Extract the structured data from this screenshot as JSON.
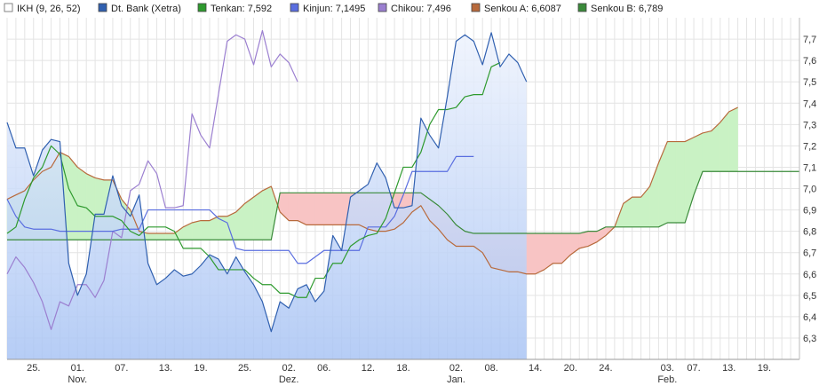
{
  "chart_data": {
    "type": "line",
    "title": "",
    "xlabel": "",
    "ylabel": "",
    "y_range": [
      6.2,
      7.8
    ],
    "y_ticks": [
      "6,3",
      "6,4",
      "6,5",
      "6,6",
      "6,7",
      "6,8",
      "6,9",
      "7,0",
      "7,1",
      "7,2",
      "7,3",
      "7,4",
      "7,5",
      "7,6",
      "7,7"
    ],
    "grid": true,
    "legend_position": "top",
    "n_points": 91,
    "x_ticks": [
      {
        "i": 3,
        "label": "25."
      },
      {
        "i": 8,
        "label": "01.",
        "month": "Nov."
      },
      {
        "i": 13,
        "label": "07."
      },
      {
        "i": 18,
        "label": "13."
      },
      {
        "i": 22,
        "label": "19."
      },
      {
        "i": 27,
        "label": "25."
      },
      {
        "i": 32,
        "label": "02.",
        "month": "Dez."
      },
      {
        "i": 36,
        "label": "06."
      },
      {
        "i": 41,
        "label": "12."
      },
      {
        "i": 45,
        "label": "18."
      },
      {
        "i": 51,
        "label": "02.",
        "month": "Jan."
      },
      {
        "i": 55,
        "label": "08."
      },
      {
        "i": 60,
        "label": "14."
      },
      {
        "i": 64,
        "label": "20."
      },
      {
        "i": 68,
        "label": "24."
      },
      {
        "i": 75,
        "label": "03.",
        "month": "Feb."
      },
      {
        "i": 78,
        "label": "07."
      },
      {
        "i": 82,
        "label": "13."
      },
      {
        "i": 86,
        "label": "19."
      }
    ],
    "legend": [
      {
        "key": "ikh",
        "label": "IKH (9, 26, 52)",
        "color": "#ffffff",
        "border": "#666666"
      },
      {
        "key": "price",
        "label": "Dt. Bank (Xetra)",
        "color": "#3060b0"
      },
      {
        "key": "tenkan",
        "label": "Tenkan: 7,592",
        "color": "#2e9a2e"
      },
      {
        "key": "kinjun",
        "label": "Kinjun: 7,1495",
        "color": "#5a6ee0"
      },
      {
        "key": "chikou",
        "label": "Chikou: 7,496",
        "color": "#9b7fd0"
      },
      {
        "key": "senkou_a",
        "label": "Senkou A: 6,6087",
        "color": "#b86a3c"
      },
      {
        "key": "senkou_b",
        "label": "Senkou B: 6,789",
        "color": "#3a8a3a"
      }
    ],
    "colors": {
      "price_fill_top": "#eef3fd",
      "price_fill_bottom": "#a9c4f4",
      "cloud_bull": "#c9f2c4",
      "cloud_bear": "#f8c4c4"
    },
    "series": [
      {
        "name": "Dt. Bank (Xetra)",
        "key": "price",
        "start": 0,
        "values": [
          7.31,
          7.19,
          7.19,
          7.06,
          7.18,
          7.23,
          7.22,
          6.65,
          6.5,
          6.6,
          6.88,
          6.88,
          7.06,
          6.92,
          6.87,
          6.97,
          6.65,
          6.55,
          6.58,
          6.62,
          6.59,
          6.6,
          6.64,
          6.69,
          6.67,
          6.6,
          6.68,
          6.61,
          6.55,
          6.47,
          6.33,
          6.47,
          6.44,
          6.53,
          6.55,
          6.47,
          6.52,
          6.78,
          6.71,
          6.96,
          6.99,
          7.02,
          7.12,
          7.05,
          6.91,
          6.91,
          6.92,
          7.33,
          7.25,
          7.19,
          7.43,
          7.69,
          7.72,
          7.69,
          7.58,
          7.73,
          7.57,
          7.63,
          7.59,
          7.5
        ]
      },
      {
        "name": "Tenkan",
        "key": "tenkan",
        "start": 0,
        "values": [
          6.79,
          6.82,
          6.95,
          7.05,
          7.1,
          7.2,
          7.16,
          7.0,
          6.92,
          6.91,
          6.87,
          6.87,
          6.87,
          6.85,
          6.8,
          6.78,
          6.82,
          6.82,
          6.82,
          6.8,
          6.72,
          6.72,
          6.72,
          6.68,
          6.62,
          6.62,
          6.62,
          6.62,
          6.58,
          6.55,
          6.55,
          6.51,
          6.51,
          6.49,
          6.49,
          6.58,
          6.58,
          6.65,
          6.65,
          6.73,
          6.76,
          6.78,
          6.79,
          6.86,
          6.98,
          7.1,
          7.1,
          7.17,
          7.3,
          7.37,
          7.37,
          7.38,
          7.43,
          7.44,
          7.44,
          7.57,
          7.59
        ]
      },
      {
        "name": "Kinjun",
        "key": "kinjun",
        "start": 0,
        "values": [
          6.95,
          6.87,
          6.82,
          6.81,
          6.81,
          6.81,
          6.8,
          6.8,
          6.8,
          6.8,
          6.8,
          6.8,
          6.8,
          6.81,
          6.81,
          6.81,
          6.9,
          6.9,
          6.9,
          6.9,
          6.9,
          6.9,
          6.9,
          6.9,
          6.86,
          6.84,
          6.72,
          6.71,
          6.71,
          6.71,
          6.71,
          6.71,
          6.71,
          6.65,
          6.65,
          6.68,
          6.71,
          6.71,
          6.71,
          6.71,
          6.71,
          6.82,
          6.82,
          6.82,
          6.87,
          6.97,
          7.08,
          7.08,
          7.08,
          7.08,
          7.08,
          7.15,
          7.15,
          7.15
        ]
      },
      {
        "name": "Chikou",
        "key": "chikou",
        "start": 0,
        "values": [
          6.6,
          6.68,
          6.63,
          6.56,
          6.47,
          6.34,
          6.47,
          6.45,
          6.55,
          6.55,
          6.49,
          6.57,
          6.8,
          6.77,
          6.99,
          7.02,
          7.13,
          7.07,
          6.91,
          6.91,
          6.92,
          7.35,
          7.25,
          7.19,
          7.44,
          7.69,
          7.72,
          7.7,
          7.58,
          7.74,
          7.57,
          7.63,
          7.59,
          7.5
        ]
      },
      {
        "name": "Senkou A",
        "key": "senkou_a",
        "start": 0,
        "values": [
          6.95,
          6.97,
          6.99,
          7.04,
          7.08,
          7.1,
          7.17,
          7.15,
          7.1,
          7.07,
          7.05,
          7.04,
          7.04,
          6.95,
          6.9,
          6.8,
          6.79,
          6.79,
          6.79,
          6.79,
          6.82,
          6.84,
          6.85,
          6.85,
          6.87,
          6.87,
          6.89,
          6.93,
          6.96,
          6.99,
          7.01,
          6.89,
          6.85,
          6.85,
          6.83,
          6.83,
          6.83,
          6.83,
          6.83,
          6.83,
          6.83,
          6.81,
          6.8,
          6.8,
          6.81,
          6.84,
          6.89,
          6.92,
          6.85,
          6.81,
          6.76,
          6.73,
          6.73,
          6.73,
          6.7,
          6.63,
          6.62,
          6.61,
          6.61,
          6.6,
          6.6,
          6.62,
          6.65,
          6.65,
          6.69,
          6.72,
          6.73,
          6.75,
          6.78,
          6.82,
          6.93,
          6.96,
          6.96,
          7.01,
          7.12,
          7.22,
          7.22,
          7.22,
          7.24,
          7.26,
          7.27,
          7.31,
          7.36,
          7.38
        ]
      },
      {
        "name": "Senkou B",
        "key": "senkou_b",
        "start": 0,
        "values": [
          6.76,
          6.76,
          6.76,
          6.76,
          6.76,
          6.76,
          6.76,
          6.76,
          6.76,
          6.76,
          6.76,
          6.76,
          6.76,
          6.76,
          6.76,
          6.76,
          6.76,
          6.76,
          6.76,
          6.76,
          6.76,
          6.76,
          6.76,
          6.76,
          6.76,
          6.76,
          6.76,
          6.76,
          6.76,
          6.76,
          6.76,
          6.98,
          6.98,
          6.98,
          6.98,
          6.98,
          6.98,
          6.98,
          6.98,
          6.98,
          6.98,
          6.98,
          6.98,
          6.98,
          6.98,
          6.98,
          6.98,
          6.98,
          6.95,
          6.92,
          6.88,
          6.83,
          6.8,
          6.79,
          6.79,
          6.79,
          6.79,
          6.79,
          6.79,
          6.79,
          6.79,
          6.79,
          6.79,
          6.79,
          6.79,
          6.79,
          6.8,
          6.8,
          6.82,
          6.82,
          6.82,
          6.82,
          6.82,
          6.82,
          6.82,
          6.84,
          6.84,
          6.84,
          6.97,
          7.08,
          7.08,
          7.08,
          7.08,
          7.08,
          7.08,
          7.08,
          7.08,
          7.08,
          7.08,
          7.08,
          7.08
        ]
      }
    ]
  }
}
